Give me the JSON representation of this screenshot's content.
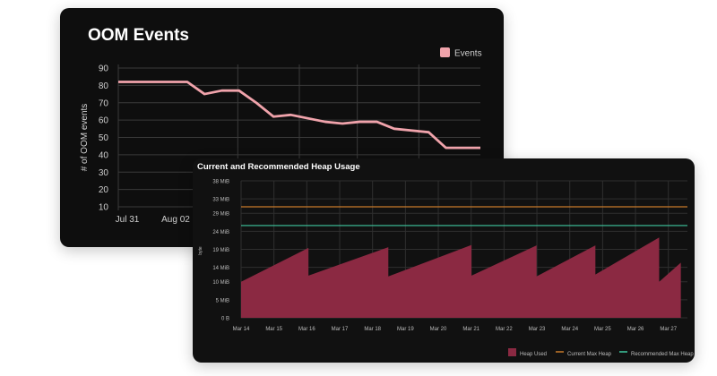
{
  "chart_data": [
    {
      "type": "line",
      "title": "OOM Events",
      "ylabel": "# of OOM events",
      "xlabel": "",
      "x_tick_labels": [
        "Jul 31",
        "Aug 02"
      ],
      "y_ticks": [
        90,
        80,
        70,
        60,
        50,
        40,
        30,
        20,
        10
      ],
      "ylim": [
        10,
        90
      ],
      "grid": true,
      "legend_position": "top-right",
      "colors": {
        "background": "#0e0e0e",
        "events": "#f0a3ab",
        "grid": "#3a3a3a",
        "text": "#d0d0d0"
      },
      "series": [
        {
          "name": "Events",
          "x": [
            0,
            1,
            2,
            3,
            4,
            5,
            6,
            7,
            8,
            9,
            10,
            11,
            12,
            13,
            14,
            15,
            16,
            17,
            18,
            19,
            20,
            21
          ],
          "values": [
            82,
            82,
            82,
            82,
            82,
            75,
            77,
            77,
            70,
            62,
            63,
            61,
            59,
            58,
            59,
            59,
            55,
            54,
            53,
            44,
            44,
            44
          ]
        }
      ]
    },
    {
      "type": "area",
      "title": "Current and Recommended Heap Usage",
      "ylabel": "byte",
      "xlabel": "",
      "categories": [
        "Mar 14",
        "Mar 15",
        "Mar 16",
        "Mar 17",
        "Mar 18",
        "Mar 19",
        "Mar 20",
        "Mar 21",
        "Mar 22",
        "Mar 23",
        "Mar 24",
        "Mar 25",
        "Mar 26",
        "Mar 27"
      ],
      "y_tick_labels": [
        "38 MiB",
        "33 MiB",
        "29 MiB",
        "24 MiB",
        "19 MiB",
        "14 MiB",
        "10 MiB",
        "5 MiB",
        "0 B"
      ],
      "y_tick_values": [
        38,
        33,
        29,
        24,
        19,
        14,
        10,
        5,
        0
      ],
      "ylim": [
        0,
        38
      ],
      "grid": true,
      "legend_position": "bottom-right",
      "colors": {
        "background": "#111111",
        "heap_used": "#8b2942",
        "current_max": "#c87a2a",
        "recommended_max": "#3fc8a0",
        "grid": "#2f2f2f",
        "text": "#bdbdbd"
      },
      "series": [
        {
          "name": "Heap Used",
          "x": [
            0,
            2.05,
            2.05,
            4.48,
            4.48,
            7.01,
            7.01,
            8.99,
            8.99,
            10.78,
            10.78,
            12.72,
            12.72,
            13.38,
            13.38,
            13.58
          ],
          "values": [
            10,
            19.4,
            11.7,
            19.6,
            11.5,
            20.2,
            11.7,
            20.1,
            11.5,
            20.1,
            12.0,
            22.3,
            10.0,
            15.3,
            0,
            0
          ]
        },
        {
          "name": "Current Max Heap",
          "x": [
            0,
            13.58
          ],
          "values": [
            30.8,
            30.8
          ]
        },
        {
          "name": "Recommended Max Heap",
          "x": [
            0,
            13.58
          ],
          "values": [
            25.6,
            25.6
          ]
        }
      ]
    }
  ]
}
